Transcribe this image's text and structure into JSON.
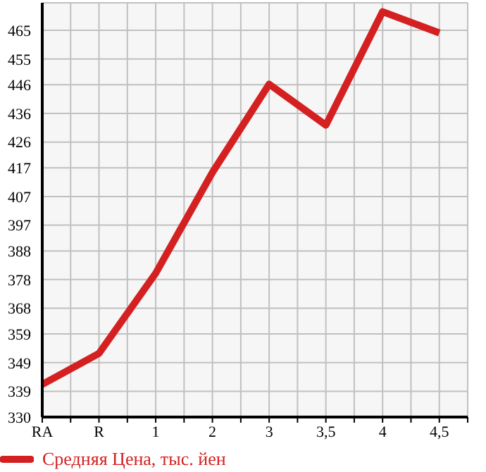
{
  "chart_data": {
    "type": "line",
    "categories": [
      "RA",
      "R",
      "1",
      "2",
      "3",
      "3,5",
      "4",
      "4,5"
    ],
    "series": [
      {
        "name": "Средняя Цена, тыс. йен",
        "color": "#d42020",
        "values": [
          341.4,
          352.2,
          380.2,
          415.4,
          446.2,
          431.9,
          471.5,
          464.1
        ]
      }
    ],
    "ylim": [
      330,
      474.6
    ],
    "yticks": [
      330,
      339,
      349,
      359,
      368,
      378,
      388,
      397,
      407,
      417,
      426,
      436,
      446,
      455,
      465,
      {
        "value": 474.6,
        "label": null
      }
    ],
    "grid": true,
    "legend": "bottom left",
    "marker": "none",
    "line_style": "solid"
  }
}
